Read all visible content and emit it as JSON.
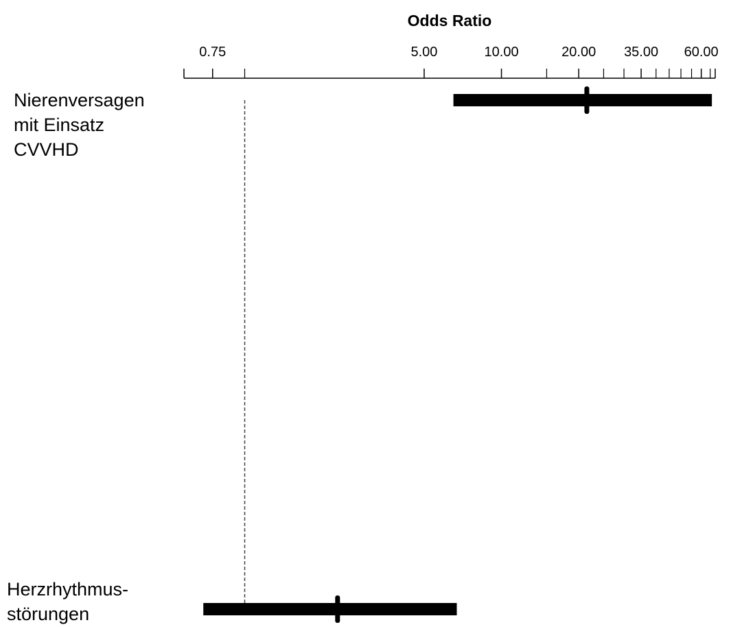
{
  "chart_data": {
    "type": "forest",
    "title": "Odds Ratio",
    "x_scale": "log",
    "xlim": [
      0.58,
      68
    ],
    "reference_line": 1,
    "tick_labels": [
      "0.75",
      "5.00",
      "10.00",
      "20.00",
      "35.00",
      "60.00"
    ],
    "tick_values": [
      0.75,
      5,
      10,
      20,
      35,
      60
    ],
    "minor_ticks": [
      1,
      15,
      25,
      30,
      40,
      45,
      50,
      55,
      65
    ],
    "rows": [
      {
        "label_lines": [
          "Nierenversagen",
          "mit Einsatz",
          "CVVHD"
        ],
        "or": 21.5,
        "ci_low": 6.5,
        "ci_high": 66
      },
      {
        "label_lines": [
          "Herzrhythmus-",
          "störungen"
        ],
        "or": 2.3,
        "ci_low": 0.69,
        "ci_high": 6.7
      }
    ]
  }
}
